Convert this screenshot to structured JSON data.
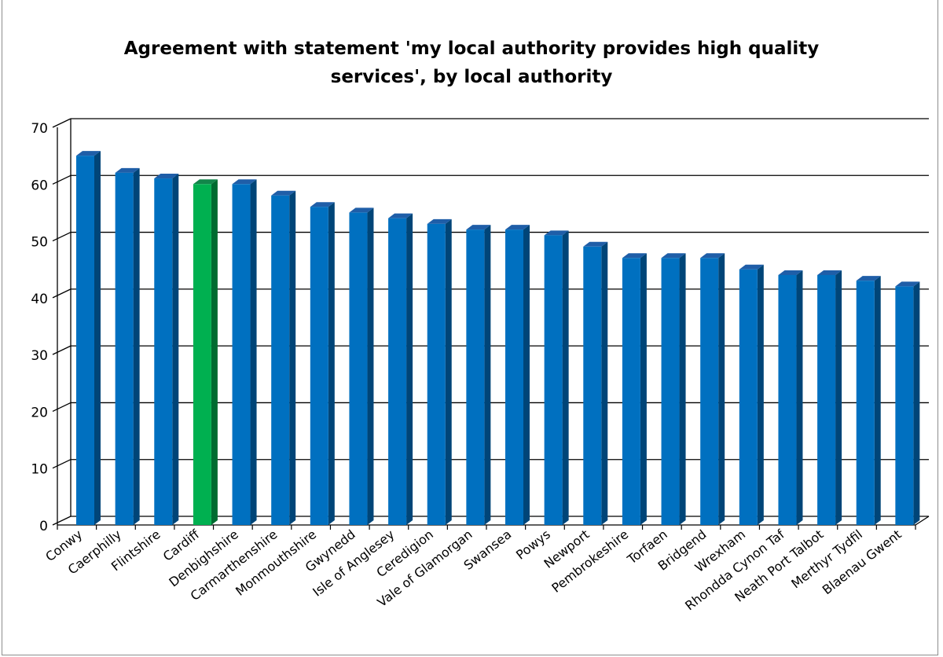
{
  "chart_data": {
    "type": "bar",
    "title_lines": [
      "Agreement with statement 'my local authority provides high quality",
      "services', by local authority"
    ],
    "categories": [
      "Conwy",
      "Caerphilly",
      "Flintshire",
      "Cardiff",
      "Denbighshire",
      "Carmarthenshire",
      "Monmouthshire",
      "Gwynedd",
      "Isle of Anglesey",
      "Ceredigion",
      "Vale of Glamorgan",
      "Swansea",
      "Powys",
      "Newport",
      "Pembrokeshire",
      "Torfaen",
      "Bridgend",
      "Wrexham",
      "Rhondda Cynon Taf",
      "Neath Port Talbot",
      "Merthyr Tydfil",
      "Blaenau Gwent"
    ],
    "values": [
      65,
      62,
      61,
      60,
      60,
      58,
      56,
      55,
      54,
      53,
      52,
      52,
      51,
      49,
      47,
      47,
      47,
      45,
      44,
      44,
      43,
      42
    ],
    "highlight_index": 3,
    "ylim": [
      0,
      70
    ],
    "yticks": [
      "0",
      "10",
      "20",
      "30",
      "40",
      "50",
      "60",
      "70"
    ],
    "grid": true,
    "legend": "none",
    "colors": {
      "bar_front": "#0070c0",
      "bar_side": "#004578",
      "bar_top": "#1f5ea8",
      "highlight_front": "#00b050",
      "highlight_side": "#006b30",
      "highlight_top": "#12864a",
      "grid": "#000000"
    }
  }
}
